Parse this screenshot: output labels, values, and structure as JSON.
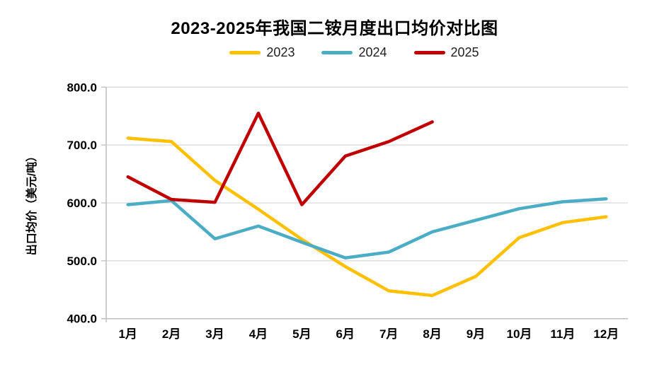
{
  "chart_data": {
    "type": "line",
    "title": "2023-2025年我国二铵月度出口均价对比图",
    "ylabel": "出口均价（美元/吨）",
    "xlabel": "",
    "categories": [
      "1月",
      "2月",
      "3月",
      "4月",
      "5月",
      "6月",
      "7月",
      "8月",
      "9月",
      "10月",
      "11月",
      "12月"
    ],
    "ylim": [
      400,
      800
    ],
    "y_tick_values": [
      800,
      700,
      600,
      500,
      400
    ],
    "y_tick_labels": [
      "800.0",
      "700.0",
      "600.0",
      "500.0",
      "400.0"
    ],
    "grid": true,
    "legend_position": "top",
    "series": [
      {
        "name": "2023",
        "color": "#FFC000",
        "values": [
          712,
          706,
          639,
          589,
          537,
          490,
          448,
          440,
          473,
          540,
          566,
          576
        ]
      },
      {
        "name": "2024",
        "color": "#4BACC6",
        "values": [
          597,
          604,
          538,
          560,
          532,
          505,
          515,
          550,
          570,
          590,
          602,
          607
        ]
      },
      {
        "name": "2025",
        "color": "#C00000",
        "values": [
          645,
          606,
          601,
          755,
          597,
          681,
          706,
          740,
          null,
          null,
          null,
          null
        ]
      }
    ],
    "colors": {
      "gridline": "#D9D9D9",
      "axis": "#BFBFBF",
      "tick_text": "#000000"
    }
  }
}
